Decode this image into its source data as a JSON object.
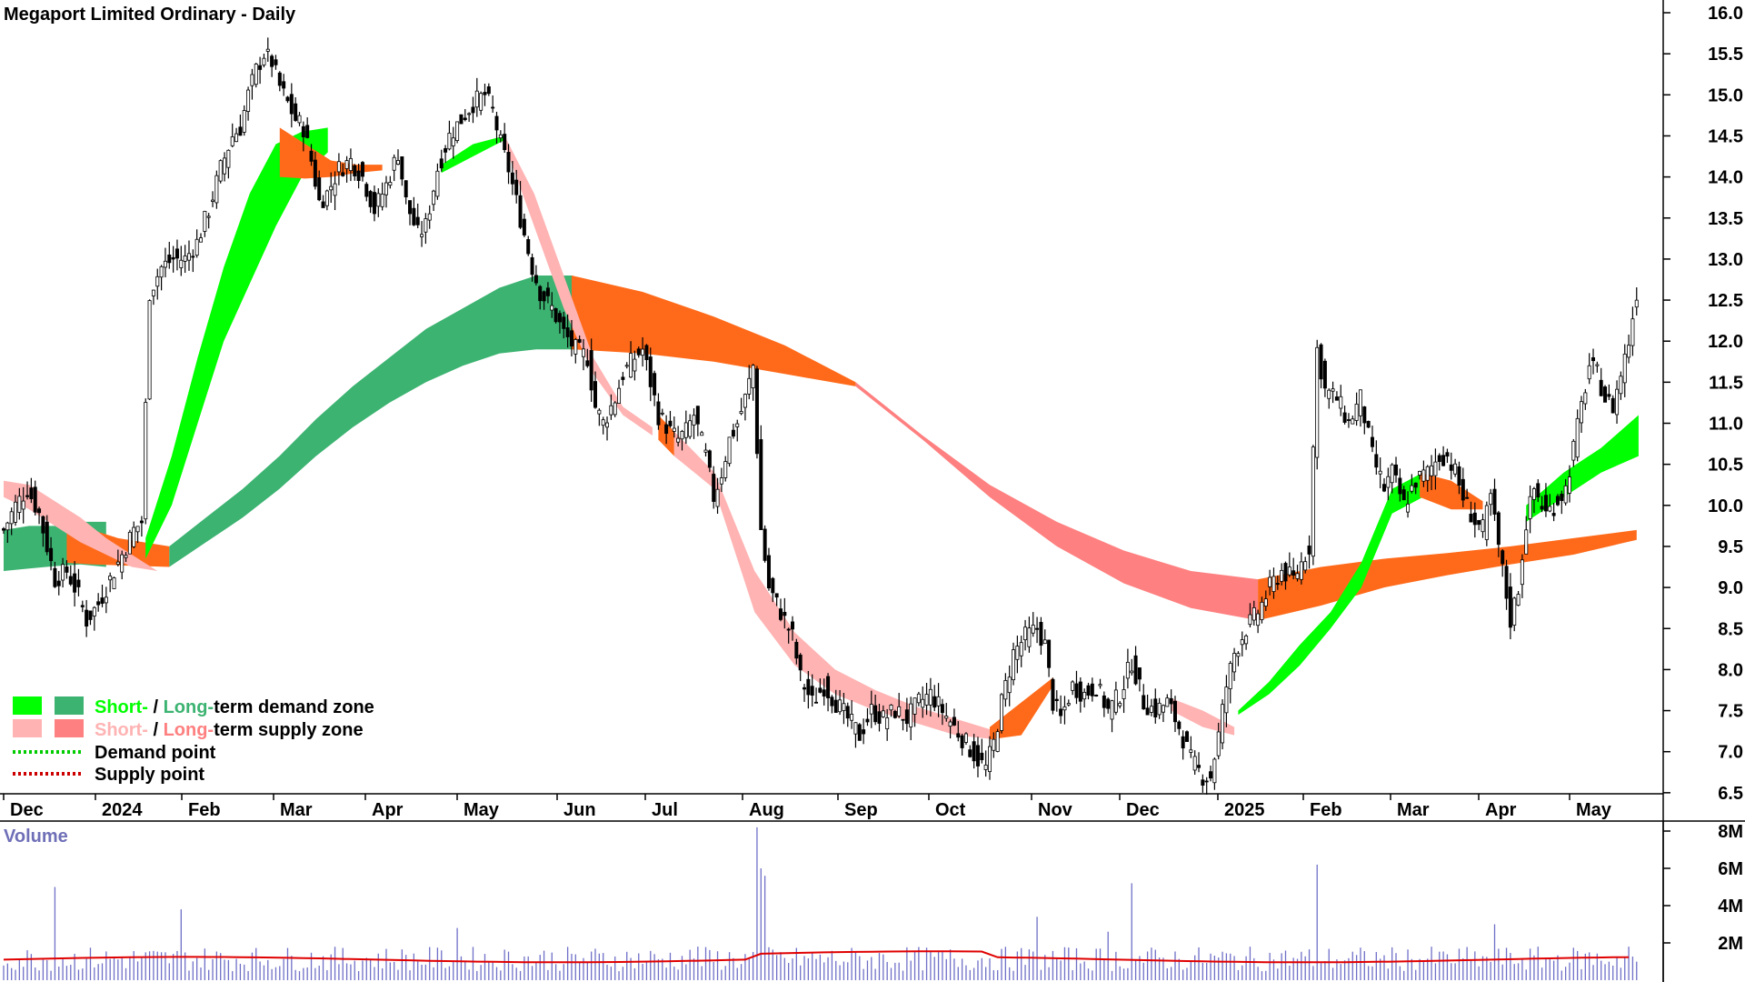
{
  "chart_data": {
    "type": "candlestick",
    "title": "Megaport Limited Ordinary - Daily",
    "ylim": [
      6.3,
      16.2
    ],
    "y_ticks": [
      "16.0",
      "15.5",
      "15.0",
      "14.5",
      "14.0",
      "13.5",
      "13.0",
      "12.5",
      "12.0",
      "11.5",
      "11.0",
      "10.5",
      "10.0",
      "9.5",
      "9.0",
      "8.5",
      "8.0",
      "7.5",
      "7.0",
      "6.5"
    ],
    "x_ticks": [
      "Dec",
      "2024",
      "Feb",
      "Mar",
      "Apr",
      "May",
      "Jun",
      "Jul",
      "Aug",
      "Sep",
      "Oct",
      "Nov",
      "Dec",
      "2025",
      "Feb",
      "Mar",
      "Apr",
      "May"
    ],
    "price_anchors": [
      [
        0,
        9.7
      ],
      [
        3,
        10.0
      ],
      [
        6,
        10.2
      ],
      [
        9,
        9.9
      ],
      [
        11,
        9.5
      ],
      [
        13,
        9.1
      ],
      [
        16,
        9.2
      ],
      [
        19,
        8.9
      ],
      [
        21,
        8.6
      ],
      [
        24,
        8.8
      ],
      [
        27,
        9.1
      ],
      [
        30,
        9.4
      ],
      [
        33,
        9.7
      ],
      [
        35,
        9.8
      ],
      [
        37,
        12.6
      ],
      [
        40,
        12.9
      ],
      [
        43,
        13.0
      ],
      [
        46,
        13.0
      ],
      [
        49,
        13.2
      ],
      [
        52,
        13.6
      ],
      [
        55,
        14.1
      ],
      [
        58,
        14.5
      ],
      [
        60,
        14.6
      ],
      [
        62,
        15.0
      ],
      [
        64,
        15.3
      ],
      [
        66,
        15.5
      ],
      [
        68,
        15.4
      ],
      [
        70,
        15.1
      ],
      [
        72,
        14.9
      ],
      [
        74,
        14.7
      ],
      [
        76,
        14.6
      ],
      [
        78,
        14.2
      ],
      [
        80,
        13.7
      ],
      [
        82,
        13.8
      ],
      [
        85,
        14.1
      ],
      [
        88,
        14.2
      ],
      [
        91,
        14.0
      ],
      [
        94,
        13.6
      ],
      [
        97,
        13.9
      ],
      [
        100,
        14.3
      ],
      [
        102,
        13.7
      ],
      [
        105,
        13.3
      ],
      [
        107,
        13.4
      ],
      [
        110,
        14.1
      ],
      [
        113,
        14.5
      ],
      [
        116,
        14.7
      ],
      [
        119,
        14.9
      ],
      [
        122,
        15.0
      ],
      [
        124,
        14.8
      ],
      [
        126,
        14.4
      ],
      [
        128,
        14.1
      ],
      [
        130,
        13.7
      ],
      [
        132,
        13.3
      ],
      [
        134,
        12.9
      ],
      [
        136,
        12.6
      ],
      [
        139,
        12.4
      ],
      [
        142,
        12.1
      ],
      [
        145,
        11.9
      ],
      [
        148,
        11.8
      ],
      [
        150,
        11.2
      ],
      [
        152,
        11.0
      ],
      [
        155,
        11.3
      ],
      [
        157,
        11.6
      ],
      [
        160,
        11.8
      ],
      [
        162,
        11.9
      ],
      [
        164,
        11.5
      ],
      [
        166,
        11.1
      ],
      [
        169,
        10.9
      ],
      [
        171,
        10.8
      ],
      [
        173,
        10.9
      ],
      [
        175,
        11.1
      ],
      [
        178,
        10.6
      ],
      [
        180,
        10.1
      ],
      [
        182,
        10.4
      ],
      [
        184,
        10.8
      ],
      [
        186,
        11.0
      ],
      [
        188,
        11.3
      ],
      [
        190,
        11.7
      ],
      [
        192,
        9.7
      ],
      [
        194,
        9.0
      ],
      [
        196,
        8.8
      ],
      [
        198,
        8.6
      ],
      [
        200,
        8.4
      ],
      [
        202,
        7.9
      ],
      [
        205,
        7.6
      ],
      [
        208,
        7.8
      ],
      [
        211,
        7.6
      ],
      [
        214,
        7.4
      ],
      [
        217,
        7.2
      ],
      [
        220,
        7.5
      ],
      [
        223,
        7.4
      ],
      [
        226,
        7.5
      ],
      [
        229,
        7.4
      ],
      [
        232,
        7.6
      ],
      [
        235,
        7.7
      ],
      [
        238,
        7.5
      ],
      [
        241,
        7.3
      ],
      [
        244,
        7.1
      ],
      [
        247,
        6.9
      ],
      [
        249,
        6.8
      ],
      [
        251,
        7.1
      ],
      [
        253,
        7.6
      ],
      [
        256,
        8.2
      ],
      [
        259,
        8.4
      ],
      [
        262,
        8.5
      ],
      [
        264,
        8.3
      ],
      [
        266,
        7.6
      ],
      [
        268,
        7.4
      ],
      [
        271,
        7.8
      ],
      [
        274,
        7.7
      ],
      [
        277,
        7.8
      ],
      [
        280,
        7.5
      ],
      [
        283,
        7.7
      ],
      [
        286,
        8.1
      ],
      [
        289,
        7.6
      ],
      [
        292,
        7.5
      ],
      [
        295,
        7.6
      ],
      [
        298,
        7.3
      ],
      [
        301,
        6.9
      ],
      [
        304,
        6.7
      ],
      [
        306,
        6.7
      ],
      [
        308,
        7.2
      ],
      [
        310,
        7.8
      ],
      [
        312,
        8.2
      ],
      [
        315,
        8.5
      ],
      [
        318,
        8.7
      ],
      [
        321,
        9.0
      ],
      [
        324,
        9.2
      ],
      [
        327,
        9.1
      ],
      [
        329,
        9.3
      ],
      [
        331,
        9.5
      ],
      [
        333,
        11.9
      ],
      [
        335,
        11.4
      ],
      [
        338,
        11.3
      ],
      [
        341,
        11.0
      ],
      [
        344,
        11.3
      ],
      [
        347,
        10.6
      ],
      [
        350,
        10.2
      ],
      [
        352,
        10.4
      ],
      [
        355,
        10.0
      ],
      [
        358,
        10.3
      ],
      [
        361,
        10.4
      ],
      [
        364,
        10.6
      ],
      [
        366,
        10.6
      ],
      [
        368,
        10.4
      ],
      [
        370,
        10.1
      ],
      [
        373,
        9.8
      ],
      [
        375,
        9.7
      ],
      [
        377,
        10.1
      ],
      [
        380,
        9.2
      ],
      [
        382,
        8.6
      ],
      [
        384,
        9.0
      ],
      [
        386,
        9.8
      ],
      [
        388,
        10.2
      ],
      [
        391,
        9.9
      ],
      [
        393,
        10.0
      ],
      [
        396,
        10.2
      ],
      [
        398,
        10.7
      ],
      [
        400,
        11.2
      ],
      [
        402,
        11.7
      ],
      [
        404,
        11.6
      ],
      [
        406,
        11.3
      ],
      [
        408,
        11.2
      ],
      [
        410,
        11.6
      ],
      [
        412,
        12.0
      ],
      [
        414,
        12.6
      ]
    ],
    "zones": {
      "short_term": [
        {
          "start": 0,
          "upper": [
            10.3,
            10.25,
            10.05,
            9.85,
            9.6,
            9.4,
            9.2
          ],
          "lower": [
            10.1,
            9.95,
            9.75,
            9.55,
            9.4,
            9.25,
            9.2
          ],
          "color": "#ffb3b3"
        },
        {
          "start": 36,
          "upper": [
            9.6,
            10.6,
            11.8,
            12.9,
            13.8,
            14.4,
            14.55,
            14.6
          ],
          "lower": [
            9.35,
            10.0,
            11.0,
            12.0,
            12.7,
            13.4,
            14.0,
            14.3
          ],
          "color": "#00ff00"
        },
        {
          "start": 70,
          "upper": [
            14.6,
            14.4,
            14.2,
            14.15,
            14.15
          ],
          "lower": [
            14.0,
            13.98,
            14.0,
            14.05,
            14.08
          ],
          "color": "#ff6a1a"
        },
        {
          "start": 111,
          "upper": [
            14.15,
            14.4,
            14.5
          ],
          "lower": [
            14.05,
            14.25,
            14.45
          ],
          "color": "#00ff00"
        },
        {
          "start": 127,
          "upper": [
            14.5,
            13.8,
            12.8,
            11.8,
            11.2,
            10.95
          ],
          "lower": [
            14.4,
            13.4,
            12.4,
            11.6,
            11.1,
            10.85
          ],
          "color": "#ffb3b3"
        },
        {
          "start": 166,
          "upper": [
            11.1,
            10.9
          ],
          "lower": [
            10.8,
            10.6
          ],
          "color": "#ff6a1a"
        },
        {
          "start": 170,
          "upper": [
            10.9,
            10.4,
            9.2,
            8.45,
            8.0,
            7.75,
            7.55,
            7.4,
            7.25
          ],
          "lower": [
            10.6,
            10.2,
            8.7,
            8.05,
            7.7,
            7.5,
            7.35,
            7.2,
            7.15
          ],
          "color": "#ffb3b3"
        },
        {
          "start": 250,
          "upper": [
            7.3,
            7.6,
            7.9
          ],
          "lower": [
            7.15,
            7.2,
            7.8
          ],
          "color": "#ff6a1a"
        },
        {
          "start": 296,
          "upper": [
            7.65,
            7.5,
            7.3
          ],
          "lower": [
            7.5,
            7.3,
            7.2
          ],
          "color": "#ffb3b3"
        },
        {
          "start": 313,
          "upper": [
            7.5,
            7.85,
            8.3,
            8.7,
            9.3,
            10.2,
            10.4
          ],
          "lower": [
            7.45,
            7.7,
            8.05,
            8.5,
            9.0,
            9.9,
            10.1
          ],
          "color": "#00ff00"
        },
        {
          "start": 359,
          "upper": [
            10.4,
            10.3,
            10.05
          ],
          "lower": [
            10.1,
            9.95,
            9.95
          ],
          "color": "#ff6a1a"
        },
        {
          "start": 386,
          "upper": [
            10.0,
            10.4,
            10.7,
            11.1
          ],
          "lower": [
            9.8,
            10.1,
            10.4,
            10.6
          ],
          "color": "#00ff00"
        }
      ],
      "long_term": [
        {
          "start": 0,
          "upper": [
            9.7,
            9.75,
            9.75,
            9.8,
            9.8
          ],
          "lower": [
            9.2,
            9.23,
            9.26,
            9.28,
            9.25
          ],
          "color": "#3cb371"
        },
        {
          "start": 16,
          "upper": [
            9.8,
            9.7,
            9.6,
            9.55,
            9.5
          ],
          "lower": [
            9.3,
            9.28,
            9.27,
            9.26,
            9.25
          ],
          "color": "#ff6a1a"
        },
        {
          "start": 42,
          "upper": [
            9.5,
            9.85,
            10.2,
            10.6,
            11.05,
            11.45,
            11.8,
            12.15,
            12.4,
            12.65,
            12.8,
            12.8
          ],
          "lower": [
            9.25,
            9.55,
            9.85,
            10.2,
            10.6,
            10.95,
            11.25,
            11.5,
            11.7,
            11.85,
            11.9,
            11.9
          ],
          "color": "#3cb371"
        },
        {
          "start": 144,
          "upper": [
            12.8,
            12.6,
            12.3,
            11.95,
            11.5
          ],
          "lower": [
            11.9,
            11.85,
            11.75,
            11.6,
            11.45
          ],
          "color": "#ff6a1a"
        },
        {
          "start": 216,
          "upper": [
            11.5,
            10.85,
            10.25,
            9.8,
            9.45,
            9.2,
            9.1
          ],
          "lower": [
            11.45,
            10.8,
            10.1,
            9.5,
            9.05,
            8.75,
            8.6
          ],
          "color": "#ff8080"
        },
        {
          "start": 318,
          "upper": [
            9.1,
            9.25,
            9.35,
            9.42,
            9.5,
            9.6,
            9.7
          ],
          "lower": [
            8.6,
            8.78,
            9.0,
            9.15,
            9.28,
            9.4,
            9.58
          ],
          "color": "#ff6a1a"
        }
      ]
    },
    "volume": {
      "title": "Volume",
      "ylim": [
        0,
        8.6
      ],
      "y_ticks": [
        "8M",
        "6M",
        "4M",
        "2M"
      ],
      "baseline": 1.2,
      "spikes": [
        [
          13,
          5.0
        ],
        [
          45,
          3.8
        ],
        [
          115,
          2.8
        ],
        [
          176,
          1.8
        ],
        [
          191,
          8.2
        ],
        [
          192,
          6.0
        ],
        [
          193,
          5.6
        ],
        [
          262,
          3.4
        ],
        [
          280,
          2.6
        ],
        [
          286,
          5.2
        ],
        [
          333,
          6.2
        ],
        [
          378,
          3.0
        ],
        [
          412,
          1.8
        ]
      ]
    },
    "legend": [
      {
        "short": "Short-",
        "sep": " / ",
        "long": "Long-",
        "suffix": "term demand zone",
        "swatch_short": "#00ff00",
        "swatch_long": "#3cb371",
        "short_color": "#00ff00",
        "long_color": "#3cb371"
      },
      {
        "short": "Short-",
        "sep": " / ",
        "long": "Long-",
        "suffix": "term supply zone",
        "swatch_short": "#ffb3b3",
        "swatch_long": "#ff8080",
        "short_color": "#ffb3b3",
        "long_color": "#ff8080"
      },
      {
        "label": "Demand point",
        "line_color": "#00cc00"
      },
      {
        "label": "Supply point",
        "line_color": "#cc0000"
      }
    ]
  }
}
